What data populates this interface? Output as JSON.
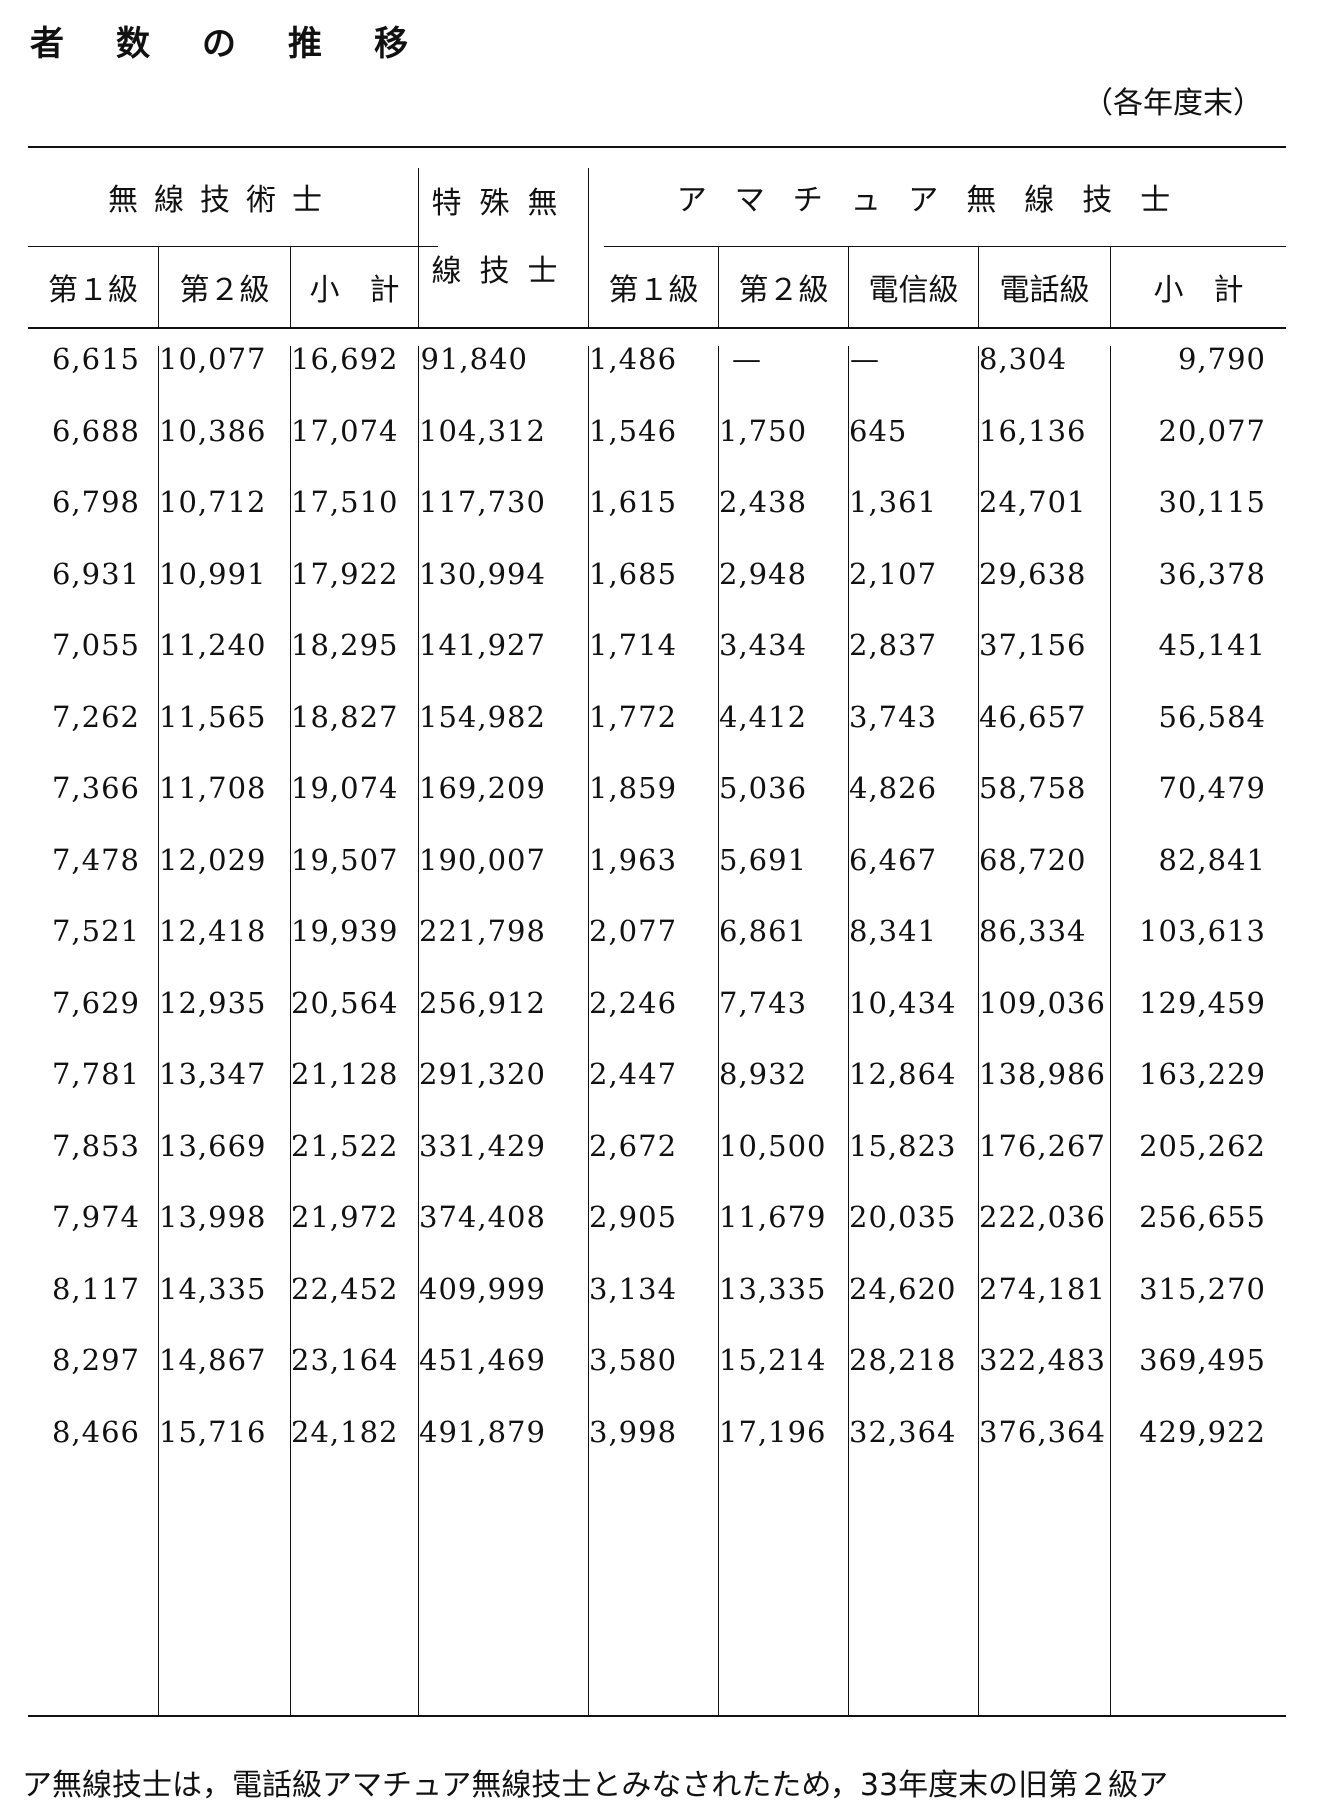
{
  "title": "者数の推移",
  "unit_note": "（各年度末）",
  "headers": {
    "group_musen": "無線技術士",
    "tokushu_line1": "特殊無",
    "tokushu_line2": "線技士",
    "group_amateur": "アマチュア無線技士",
    "musen_cols": [
      "第１級",
      "第２級",
      "小　計"
    ],
    "amateur_cols": [
      "第１級",
      "第２級",
      "電信級",
      "電話級",
      "小　計"
    ]
  },
  "rows": [
    [
      "6,615",
      "10,077",
      "16,692",
      "91,840",
      "1,486",
      "—",
      "—",
      "8,304",
      "9,790"
    ],
    [
      "6,688",
      "10,386",
      "17,074",
      "104,312",
      "1,546",
      "1,750",
      "645",
      "16,136",
      "20,077"
    ],
    [
      "6,798",
      "10,712",
      "17,510",
      "117,730",
      "1,615",
      "2,438",
      "1,361",
      "24,701",
      "30,115"
    ],
    [
      "6,931",
      "10,991",
      "17,922",
      "130,994",
      "1,685",
      "2,948",
      "2,107",
      "29,638",
      "36,378"
    ],
    [
      "7,055",
      "11,240",
      "18,295",
      "141,927",
      "1,714",
      "3,434",
      "2,837",
      "37,156",
      "45,141"
    ],
    [
      "7,262",
      "11,565",
      "18,827",
      "154,982",
      "1,772",
      "4,412",
      "3,743",
      "46,657",
      "56,584"
    ],
    [
      "7,366",
      "11,708",
      "19,074",
      "169,209",
      "1,859",
      "5,036",
      "4,826",
      "58,758",
      "70,479"
    ],
    [
      "7,478",
      "12,029",
      "19,507",
      "190,007",
      "1,963",
      "5,691",
      "6,467",
      "68,720",
      "82,841"
    ],
    [
      "7,521",
      "12,418",
      "19,939",
      "221,798",
      "2,077",
      "6,861",
      "8,341",
      "86,334",
      "103,613"
    ],
    [
      "7,629",
      "12,935",
      "20,564",
      "256,912",
      "2,246",
      "7,743",
      "10,434",
      "109,036",
      "129,459"
    ],
    [
      "7,781",
      "13,347",
      "21,128",
      "291,320",
      "2,447",
      "8,932",
      "12,864",
      "138,986",
      "163,229"
    ],
    [
      "7,853",
      "13,669",
      "21,522",
      "331,429",
      "2,672",
      "10,500",
      "15,823",
      "176,267",
      "205,262"
    ],
    [
      "7,974",
      "13,998",
      "21,972",
      "374,408",
      "2,905",
      "11,679",
      "20,035",
      "222,036",
      "256,655"
    ],
    [
      "8,117",
      "14,335",
      "22,452",
      "409,999",
      "3,134",
      "13,335",
      "24,620",
      "274,181",
      "315,270"
    ],
    [
      "8,297",
      "14,867",
      "23,164",
      "451,469",
      "3,580",
      "15,214",
      "28,218",
      "322,483",
      "369,495"
    ],
    [
      "8,466",
      "15,716",
      "24,182",
      "491,879",
      "3,998",
      "17,196",
      "32,364",
      "376,364",
      "429,922"
    ]
  ],
  "footnote": "ア無線技士は，電話級アマチュア無線技士とみなされたため，33年度末の旧第２級ア"
}
